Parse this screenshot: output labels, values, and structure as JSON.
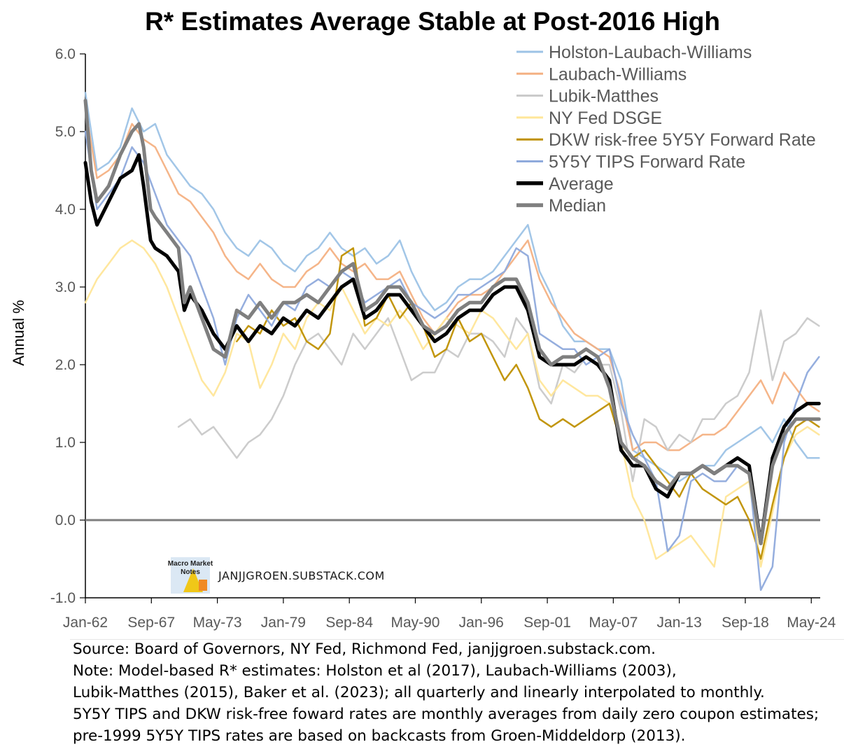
{
  "chart_data": {
    "type": "line",
    "title": "R* Estimates Average Stable at Post-2016 High",
    "ylabel": "Annual %",
    "xlabel": "",
    "ylim": [
      -1.0,
      6.0
    ],
    "yticks": [
      "-1.0",
      "0.0",
      "1.0",
      "2.0",
      "3.0",
      "4.0",
      "5.0",
      "6.0"
    ],
    "xticks": [
      "Jan-62",
      "Sep-67",
      "May-73",
      "Jan-79",
      "Sep-84",
      "May-90",
      "Jan-96",
      "Sep-01",
      "May-07",
      "Jan-13",
      "Sep-18",
      "May-24"
    ],
    "x_range": [
      1962.0,
      2025.1
    ],
    "legend_position": "top-right",
    "grid": false,
    "watermark": "JANJJGROEN.SUBSTACK.COM",
    "logo_text": "Macro Market Notes",
    "series": [
      {
        "name": "Holston-Laubach-Williams",
        "color": "#9dc3e6",
        "x": [
          1962,
          1963,
          1964,
          1965,
          1966,
          1967,
          1968,
          1969,
          1970,
          1971,
          1972,
          1973,
          1974,
          1975,
          1976,
          1977,
          1978,
          1979,
          1980,
          1981,
          1982,
          1983,
          1984,
          1985,
          1986,
          1987,
          1988,
          1989,
          1990,
          1991,
          1992,
          1993,
          1994,
          1995,
          1996,
          1997,
          1998,
          1999,
          2000,
          2001,
          2002,
          2003,
          2004,
          2005,
          2006,
          2007,
          2008,
          2009,
          2010,
          2011,
          2012,
          2013,
          2014,
          2015,
          2016,
          2017,
          2018,
          2019,
          2020,
          2021,
          2022,
          2023,
          2024,
          2025
        ],
        "values": [
          5.5,
          4.5,
          4.6,
          4.8,
          5.3,
          5.0,
          5.1,
          4.7,
          4.5,
          4.3,
          4.2,
          4.0,
          3.7,
          3.5,
          3.4,
          3.6,
          3.5,
          3.3,
          3.2,
          3.4,
          3.5,
          3.7,
          3.5,
          3.4,
          3.5,
          3.3,
          3.4,
          3.6,
          3.2,
          2.9,
          2.7,
          2.8,
          3.0,
          3.1,
          3.1,
          3.2,
          3.4,
          3.6,
          3.8,
          3.2,
          2.9,
          2.5,
          2.3,
          2.3,
          2.2,
          2.2,
          1.8,
          0.9,
          0.8,
          0.7,
          0.6,
          0.5,
          0.6,
          0.7,
          0.7,
          0.9,
          1.0,
          1.1,
          1.2,
          1.0,
          1.3,
          1.0,
          0.8,
          0.8
        ]
      },
      {
        "name": "Laubach-Williams",
        "color": "#f4b183",
        "x": [
          1962,
          1963,
          1964,
          1965,
          1966,
          1967,
          1968,
          1969,
          1970,
          1971,
          1972,
          1973,
          1974,
          1975,
          1976,
          1977,
          1978,
          1979,
          1980,
          1981,
          1982,
          1983,
          1984,
          1985,
          1986,
          1987,
          1988,
          1989,
          1990,
          1991,
          1992,
          1993,
          1994,
          1995,
          1996,
          1997,
          1998,
          1999,
          2000,
          2001,
          2002,
          2003,
          2004,
          2005,
          2006,
          2007,
          2008,
          2009,
          2010,
          2011,
          2012,
          2013,
          2014,
          2015,
          2016,
          2017,
          2018,
          2019,
          2020,
          2021,
          2022,
          2023,
          2024,
          2025
        ],
        "values": [
          5.3,
          4.4,
          4.5,
          4.7,
          5.1,
          4.9,
          4.8,
          4.5,
          4.2,
          4.1,
          3.9,
          3.7,
          3.4,
          3.2,
          3.1,
          3.3,
          3.1,
          3.0,
          3.0,
          3.2,
          3.3,
          3.5,
          3.3,
          3.2,
          3.3,
          3.1,
          3.1,
          3.2,
          2.9,
          2.6,
          2.4,
          2.6,
          2.8,
          2.9,
          2.9,
          3.0,
          3.2,
          3.4,
          3.6,
          3.1,
          2.8,
          2.6,
          2.4,
          2.3,
          2.2,
          2.1,
          1.6,
          0.9,
          1.0,
          1.0,
          0.9,
          0.9,
          1.0,
          1.1,
          1.1,
          1.2,
          1.4,
          1.6,
          1.8,
          1.5,
          1.9,
          1.7,
          1.5,
          1.4
        ]
      },
      {
        "name": "Lubik-Matthes",
        "color": "#c9c9c9",
        "x": [
          1970,
          1971,
          1972,
          1973,
          1974,
          1975,
          1976,
          1977,
          1978,
          1979,
          1980,
          1981,
          1982,
          1983,
          1984,
          1985,
          1986,
          1987,
          1988,
          1989,
          1990,
          1991,
          1992,
          1993,
          1994,
          1995,
          1996,
          1997,
          1998,
          1999,
          2000,
          2001,
          2002,
          2003,
          2004,
          2005,
          2006,
          2007,
          2008,
          2009,
          2010,
          2011,
          2012,
          2013,
          2014,
          2015,
          2016,
          2017,
          2018,
          2019,
          2020,
          2021,
          2022,
          2023,
          2024,
          2025
        ],
        "values": [
          1.2,
          1.3,
          1.1,
          1.2,
          1.0,
          0.8,
          1.0,
          1.1,
          1.3,
          1.6,
          2.0,
          2.3,
          2.4,
          2.2,
          2.0,
          2.4,
          2.2,
          2.4,
          2.6,
          2.2,
          1.8,
          1.9,
          1.9,
          2.2,
          2.1,
          2.4,
          2.4,
          2.3,
          2.1,
          2.6,
          2.4,
          1.7,
          1.5,
          2.0,
          1.9,
          2.1,
          2.0,
          2.0,
          1.4,
          0.5,
          1.3,
          1.2,
          0.9,
          1.1,
          1.0,
          1.3,
          1.3,
          1.5,
          1.6,
          1.9,
          2.7,
          1.8,
          2.3,
          2.4,
          2.6,
          2.5
        ]
      },
      {
        "name": "NY Fed DSGE",
        "color": "#ffe699",
        "x": [
          1962,
          1963,
          1964,
          1965,
          1966,
          1967,
          1968,
          1969,
          1970,
          1971,
          1972,
          1973,
          1974,
          1975,
          1976,
          1977,
          1978,
          1979,
          1980,
          1981,
          1982,
          1983,
          1984,
          1985,
          1986,
          1987,
          1988,
          1989,
          1990,
          1991,
          1992,
          1993,
          1994,
          1995,
          1996,
          1997,
          1998,
          1999,
          2000,
          2001,
          2002,
          2003,
          2004,
          2005,
          2006,
          2007,
          2008,
          2009,
          2010,
          2011,
          2012,
          2013,
          2014,
          2015,
          2016,
          2017,
          2018,
          2019,
          2020,
          2021,
          2022,
          2023,
          2024,
          2025
        ],
        "values": [
          2.8,
          3.1,
          3.3,
          3.5,
          3.6,
          3.5,
          3.3,
          3.0,
          2.6,
          2.2,
          1.8,
          1.6,
          1.9,
          2.4,
          2.3,
          1.7,
          2.0,
          2.4,
          2.2,
          2.6,
          2.8,
          2.7,
          3.0,
          2.7,
          2.4,
          2.6,
          2.5,
          2.7,
          2.5,
          2.2,
          2.4,
          2.6,
          2.5,
          2.4,
          2.7,
          2.6,
          2.4,
          2.2,
          2.4,
          1.8,
          1.6,
          1.8,
          1.7,
          1.6,
          1.6,
          1.5,
          1.0,
          0.3,
          0.0,
          -0.5,
          -0.4,
          -0.3,
          -0.2,
          -0.4,
          -0.6,
          0.3,
          0.4,
          0.5,
          -0.6,
          0.1,
          0.8,
          1.1,
          1.2,
          1.1
        ]
      },
      {
        "name": "DKW risk-free 5Y5Y Forward Rate",
        "color": "#bf9000",
        "x": [
          1975,
          1976,
          1977,
          1978,
          1979,
          1980,
          1981,
          1982,
          1983,
          1984,
          1985,
          1986,
          1987,
          1988,
          1989,
          1990,
          1991,
          1992,
          1993,
          1994,
          1995,
          1996,
          1997,
          1998,
          1999,
          2000,
          2001,
          2002,
          2003,
          2004,
          2005,
          2006,
          2007,
          2008,
          2009,
          2010,
          2011,
          2012,
          2013,
          2014,
          2015,
          2016,
          2017,
          2018,
          2019,
          2020,
          2021,
          2022,
          2023,
          2024,
          2025
        ],
        "values": [
          2.3,
          2.5,
          2.4,
          2.7,
          2.5,
          2.6,
          2.3,
          2.2,
          2.4,
          3.4,
          3.5,
          2.5,
          2.6,
          2.9,
          2.6,
          2.8,
          2.5,
          2.1,
          2.2,
          2.6,
          2.3,
          2.4,
          2.1,
          1.8,
          2.0,
          1.7,
          1.3,
          1.2,
          1.3,
          1.2,
          1.3,
          1.4,
          1.5,
          1.0,
          0.8,
          0.9,
          0.7,
          0.5,
          0.3,
          0.6,
          0.4,
          0.3,
          0.2,
          0.3,
          0.0,
          -0.5,
          0.2,
          0.8,
          1.2,
          1.3,
          1.2
        ]
      },
      {
        "name": "5Y5Y TIPS Forward Rate",
        "color": "#8faadc",
        "x": [
          1962,
          1963,
          1964,
          1965,
          1966,
          1967,
          1968,
          1969,
          1970,
          1971,
          1972,
          1973,
          1974,
          1975,
          1976,
          1977,
          1978,
          1979,
          1980,
          1981,
          1982,
          1983,
          1984,
          1985,
          1986,
          1987,
          1988,
          1989,
          1990,
          1991,
          1992,
          1993,
          1994,
          1995,
          1996,
          1997,
          1998,
          1999,
          2000,
          2001,
          2002,
          2003,
          2004,
          2005,
          2006,
          2007,
          2008,
          2009,
          2010,
          2011,
          2012,
          2013,
          2014,
          2015,
          2016,
          2017,
          2018,
          2019,
          2020,
          2021,
          2022,
          2023,
          2024,
          2025
        ],
        "values": [
          5.0,
          4.0,
          4.2,
          4.4,
          4.8,
          4.6,
          4.2,
          3.8,
          3.6,
          3.4,
          3.0,
          2.6,
          2.0,
          2.6,
          2.9,
          2.7,
          2.5,
          2.8,
          2.7,
          3.0,
          3.1,
          3.0,
          3.2,
          3.1,
          2.8,
          2.9,
          3.0,
          3.1,
          2.8,
          2.7,
          2.6,
          2.7,
          2.9,
          2.9,
          3.0,
          3.1,
          3.2,
          3.5,
          3.4,
          2.4,
          2.3,
          2.2,
          2.2,
          2.0,
          2.1,
          2.2,
          1.5,
          1.1,
          0.8,
          0.5,
          -0.4,
          -0.2,
          0.5,
          0.6,
          0.5,
          0.5,
          0.7,
          0.6,
          -0.9,
          -0.6,
          1.0,
          1.5,
          1.9,
          2.1
        ]
      },
      {
        "name": "Average",
        "color": "#000000",
        "x": [
          1962,
          1962.5,
          1963,
          1964,
          1965,
          1966,
          1966.6,
          1967,
          1967.6,
          1968,
          1969,
          1970,
          1970.5,
          1971,
          1972,
          1973,
          1974,
          1975,
          1976,
          1977,
          1978,
          1979,
          1980,
          1981,
          1982,
          1983,
          1984,
          1985,
          1986,
          1987,
          1988,
          1989,
          1990,
          1991,
          1992,
          1993,
          1994,
          1995,
          1996,
          1997,
          1998,
          1999,
          2000,
          2001,
          2002,
          2003,
          2004,
          2005,
          2006,
          2007,
          2008,
          2009,
          2010,
          2011,
          2012,
          2013,
          2014,
          2015,
          2016,
          2017,
          2018,
          2019,
          2020,
          2021,
          2022,
          2023,
          2024,
          2025
        ],
        "values": [
          4.6,
          4.1,
          3.8,
          4.1,
          4.4,
          4.5,
          4.7,
          4.3,
          3.6,
          3.5,
          3.4,
          3.2,
          2.7,
          2.9,
          2.7,
          2.4,
          2.2,
          2.5,
          2.3,
          2.5,
          2.4,
          2.6,
          2.5,
          2.7,
          2.6,
          2.8,
          3.0,
          3.1,
          2.6,
          2.7,
          2.9,
          2.9,
          2.7,
          2.5,
          2.3,
          2.4,
          2.6,
          2.7,
          2.7,
          2.9,
          3.0,
          3.0,
          2.7,
          2.1,
          2.0,
          2.0,
          2.0,
          2.1,
          2.0,
          1.8,
          0.9,
          0.7,
          0.7,
          0.4,
          0.3,
          0.6,
          0.6,
          0.7,
          0.6,
          0.7,
          0.8,
          0.7,
          -0.3,
          0.8,
          1.2,
          1.4,
          1.5,
          1.5
        ]
      },
      {
        "name": "Median",
        "color": "#7f7f7f",
        "x": [
          1962,
          1962.5,
          1963,
          1964,
          1965,
          1966,
          1966.6,
          1967,
          1967.6,
          1968,
          1969,
          1970,
          1970.5,
          1971,
          1972,
          1973,
          1974,
          1975,
          1976,
          1977,
          1978,
          1979,
          1980,
          1981,
          1982,
          1983,
          1984,
          1985,
          1986,
          1987,
          1988,
          1989,
          1990,
          1991,
          1992,
          1993,
          1994,
          1995,
          1996,
          1997,
          1998,
          1999,
          2000,
          2001,
          2002,
          2003,
          2004,
          2005,
          2006,
          2007,
          2008,
          2009,
          2010,
          2011,
          2012,
          2013,
          2014,
          2015,
          2016,
          2017,
          2018,
          2019,
          2020,
          2021,
          2022,
          2023,
          2024,
          2025
        ],
        "values": [
          5.4,
          4.5,
          4.1,
          4.3,
          4.7,
          5.0,
          5.1,
          4.8,
          4.0,
          3.9,
          3.7,
          3.5,
          2.8,
          3.0,
          2.6,
          2.2,
          2.1,
          2.7,
          2.6,
          2.8,
          2.6,
          2.8,
          2.8,
          2.9,
          2.8,
          3.0,
          3.2,
          3.3,
          2.7,
          2.8,
          3.0,
          3.0,
          2.8,
          2.5,
          2.4,
          2.5,
          2.7,
          2.8,
          2.8,
          3.0,
          3.1,
          3.1,
          2.8,
          2.2,
          2.0,
          2.1,
          2.1,
          2.2,
          2.1,
          1.7,
          1.0,
          0.8,
          0.7,
          0.5,
          0.4,
          0.6,
          0.6,
          0.7,
          0.6,
          0.7,
          0.7,
          0.6,
          -0.3,
          0.7,
          1.1,
          1.3,
          1.3,
          1.3
        ]
      }
    ]
  },
  "footer": {
    "line1": "Source: Board of Governors, NY Fed, Richmond Fed, janjjgroen.substack.com.",
    "line2": "Note: Model-based R* estimates: Holston et al (2017), Laubach-Williams (2003),",
    "line3": "Lubik-Matthes (2015), Baker et al. (2023); all quarterly and linearly interpolated to monthly.",
    "line4": "5Y5Y TIPS and DKW risk-free foward rates are monthly averages from daily zero coupon estimates;",
    "line5": "pre-1999 5Y5Y TIPS rates are based on backcasts from Groen-Middeldorp (2013)."
  }
}
